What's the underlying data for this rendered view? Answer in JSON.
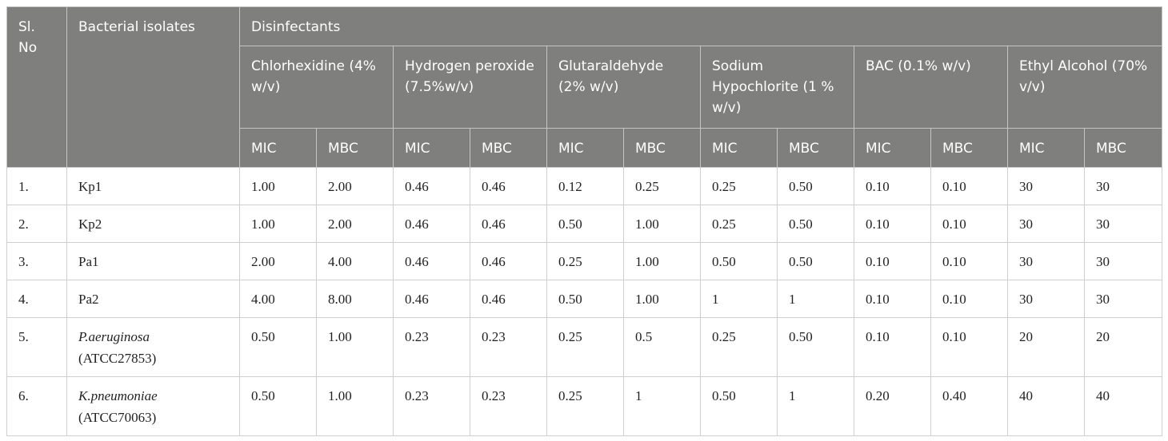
{
  "table": {
    "headers": {
      "sl_no": "Sl. No",
      "bacterial_isolates": "Bacterial isolates",
      "disinfectants": "Disinfectants",
      "agents": [
        "Chlorhexidine (4% w/v)",
        "Hydrogen peroxide (7.5%w/v)",
        "Glutaraldehyde (2% w/v)",
        "Sodium Hypochlorite (1 % w/v)",
        "BAC (0.1% w/v)",
        "Ethyl Alcohol (70% v/v)"
      ],
      "mic": "MIC",
      "mbc": "MBC"
    },
    "rows": [
      {
        "no": "1.",
        "isolate": "Kp1",
        "strain": "",
        "values": [
          "1.00",
          "2.00",
          "0.46",
          "0.46",
          "0.12",
          "0.25",
          "0.25",
          "0.50",
          "0.10",
          "0.10",
          "30",
          "30"
        ]
      },
      {
        "no": "2.",
        "isolate": "Kp2",
        "strain": "",
        "values": [
          "1.00",
          "2.00",
          "0.46",
          "0.46",
          "0.50",
          "1.00",
          "0.25",
          "0.50",
          "0.10",
          "0.10",
          "30",
          "30"
        ]
      },
      {
        "no": "3.",
        "isolate": "Pa1",
        "strain": "",
        "values": [
          "2.00",
          "4.00",
          "0.46",
          "0.46",
          "0.25",
          "1.00",
          "0.50",
          "0.50",
          "0.10",
          "0.10",
          "30",
          "30"
        ]
      },
      {
        "no": "4.",
        "isolate": "Pa2",
        "strain": "",
        "values": [
          "4.00",
          "8.00",
          "0.46",
          "0.46",
          "0.50",
          "1.00",
          "1",
          "1",
          "0.10",
          "0.10",
          "30",
          "30"
        ]
      },
      {
        "no": "5.",
        "isolate": "P.aeruginosa",
        "strain": "(ATCC27853)",
        "values": [
          "0.50",
          "1.00",
          "0.23",
          "0.23",
          "0.25",
          "0.5",
          "0.25",
          "0.50",
          "0.10",
          "0.10",
          "20",
          "20"
        ]
      },
      {
        "no": "6.",
        "isolate": "K.pneumoniae",
        "strain": "(ATCC70063)",
        "values": [
          "0.50",
          "1.00",
          "0.23",
          "0.23",
          "0.25",
          "1",
          "0.50",
          "1",
          "0.20",
          "0.40",
          "40",
          "40"
        ]
      }
    ]
  }
}
